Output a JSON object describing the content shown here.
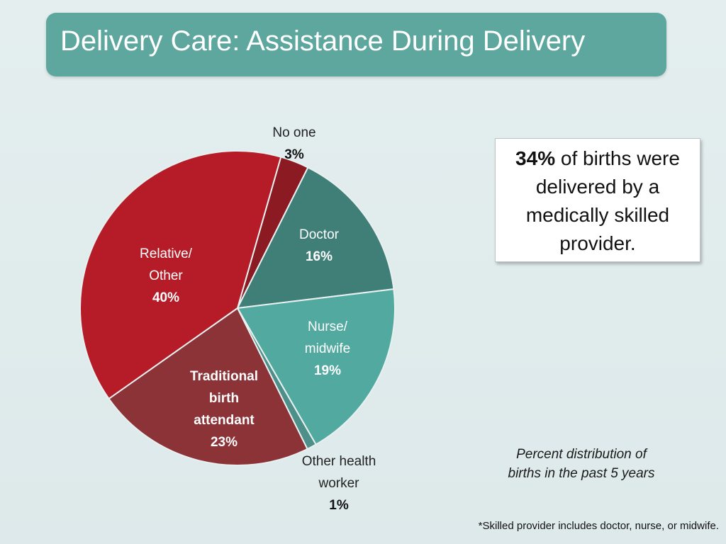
{
  "title": "Delivery Care: Assistance During Delivery",
  "callout": {
    "highlight": "34%",
    "text": "of births were delivered by a medically skilled provider."
  },
  "subtitle_line1": "Percent distribution of",
  "subtitle_line2": "births in the past 5 years",
  "footnote": "*Skilled provider includes doctor, nurse, or midwife.",
  "chart_data": {
    "type": "pie",
    "slices": [
      {
        "label_lines": [
          "No one"
        ],
        "value_label": "3%",
        "value": 3,
        "color": "#8b1a22"
      },
      {
        "label_lines": [
          "Doctor"
        ],
        "value_label": "16%",
        "value": 16,
        "color": "#3f7f78"
      },
      {
        "label_lines": [
          "Nurse/",
          "midwife"
        ],
        "value_label": "19%",
        "value": 19,
        "color": "#52a9a0"
      },
      {
        "label_lines": [
          "Other health",
          "worker"
        ],
        "value_label": "1%",
        "value": 1,
        "color": "#4d8f89"
      },
      {
        "label_lines": [
          "Traditional",
          "birth",
          "attendant"
        ],
        "value_label": "23%",
        "value": 23,
        "color": "#8c3338"
      },
      {
        "label_lines": [
          "Relative/",
          "Other"
        ],
        "value_label": "40%",
        "value": 40,
        "color": "#b51c27"
      }
    ]
  }
}
